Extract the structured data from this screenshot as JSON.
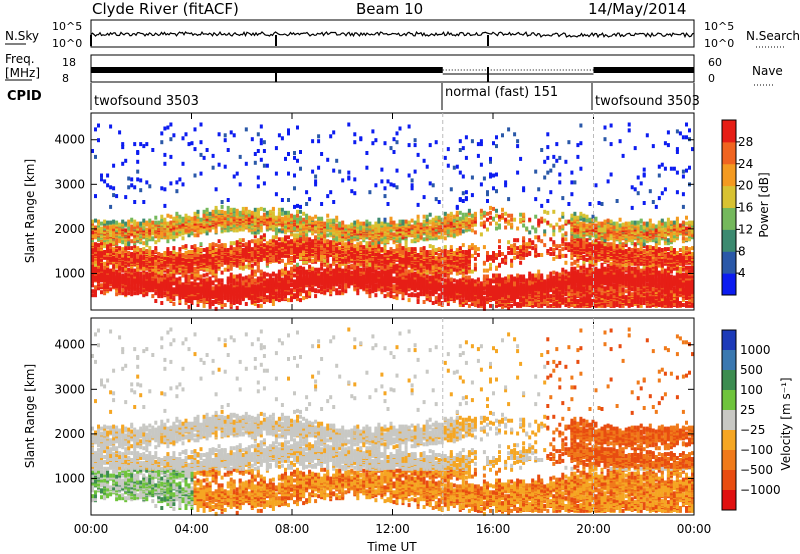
{
  "header": {
    "station": "Clyde River (fitACF)",
    "beam": "Beam 10",
    "date": "14/May/2014"
  },
  "params": {
    "nsky_label": "N.Sky",
    "nsearch_label": "N.Search",
    "nsky_ticks": [
      "10^5",
      "10^0"
    ],
    "nsearch_ticks": [
      "10^5",
      "10^0"
    ],
    "freq_label_1": "Freq.",
    "freq_label_2": "[MHz]",
    "freq_ticks": [
      "18",
      "8"
    ],
    "nave_label": "Nave",
    "nave_ticks": [
      "60",
      "0"
    ],
    "cpid_label": "CPID",
    "cpid_segments": [
      {
        "name": "twofsound 3503",
        "start_hour": 0,
        "end_hour": 14.0
      },
      {
        "name": "normal (fast) 151",
        "start_hour": 14.0,
        "end_hour": 20.0
      },
      {
        "name": "twofsound 3503",
        "start_hour": 20.0,
        "end_hour": 24.0
      }
    ]
  },
  "chart_data": [
    {
      "type": "heatmap",
      "ylabel": "Slant Range [km]",
      "xlabel": "",
      "xlim": [
        0,
        24
      ],
      "ylim": [
        180,
        4600
      ],
      "y_ticks": [
        1000,
        2000,
        3000,
        4000
      ],
      "colorbar": {
        "label": "Power [dB]",
        "ticks": [
          "4",
          "8",
          "12",
          "16",
          "20",
          "24",
          "28"
        ],
        "colors": [
          "#0c1cf0",
          "#2a58a8",
          "#3c8a70",
          "#74b85c",
          "#d8c232",
          "#f49a20",
          "#f06420",
          "#e61e16"
        ]
      },
      "echo_bands": [
        {
          "name": "low",
          "center_km": 800,
          "width_km": 420,
          "level": 0.85
        },
        {
          "name": "middle",
          "center_km": 1450,
          "width_km": 380,
          "level": 0.7
        },
        {
          "name": "upper",
          "center_km": 2100,
          "width_km": 320,
          "level": 0.45
        }
      ]
    },
    {
      "type": "heatmap",
      "ylabel": "Slant Range [km]",
      "xlabel": "Time UT",
      "xlim": [
        0,
        24
      ],
      "ylim": [
        180,
        4600
      ],
      "x_ticks": [
        "00:00",
        "04:00",
        "08:00",
        "12:00",
        "16:00",
        "20:00",
        "00:00"
      ],
      "y_ticks": [
        1000,
        2000,
        3000,
        4000
      ],
      "colorbar": {
        "label": "Velocity [m s⁻¹]",
        "ticks": [
          "1000",
          "500",
          "100",
          "25",
          "−25",
          "−100",
          "−500",
          "−1000"
        ],
        "colors": [
          "#1c3ab8",
          "#3a78b0",
          "#3c8c50",
          "#6fc43c",
          "#c8c8c4",
          "#f5a623",
          "#f07a1a",
          "#e84c10",
          "#e01010"
        ]
      }
    }
  ]
}
